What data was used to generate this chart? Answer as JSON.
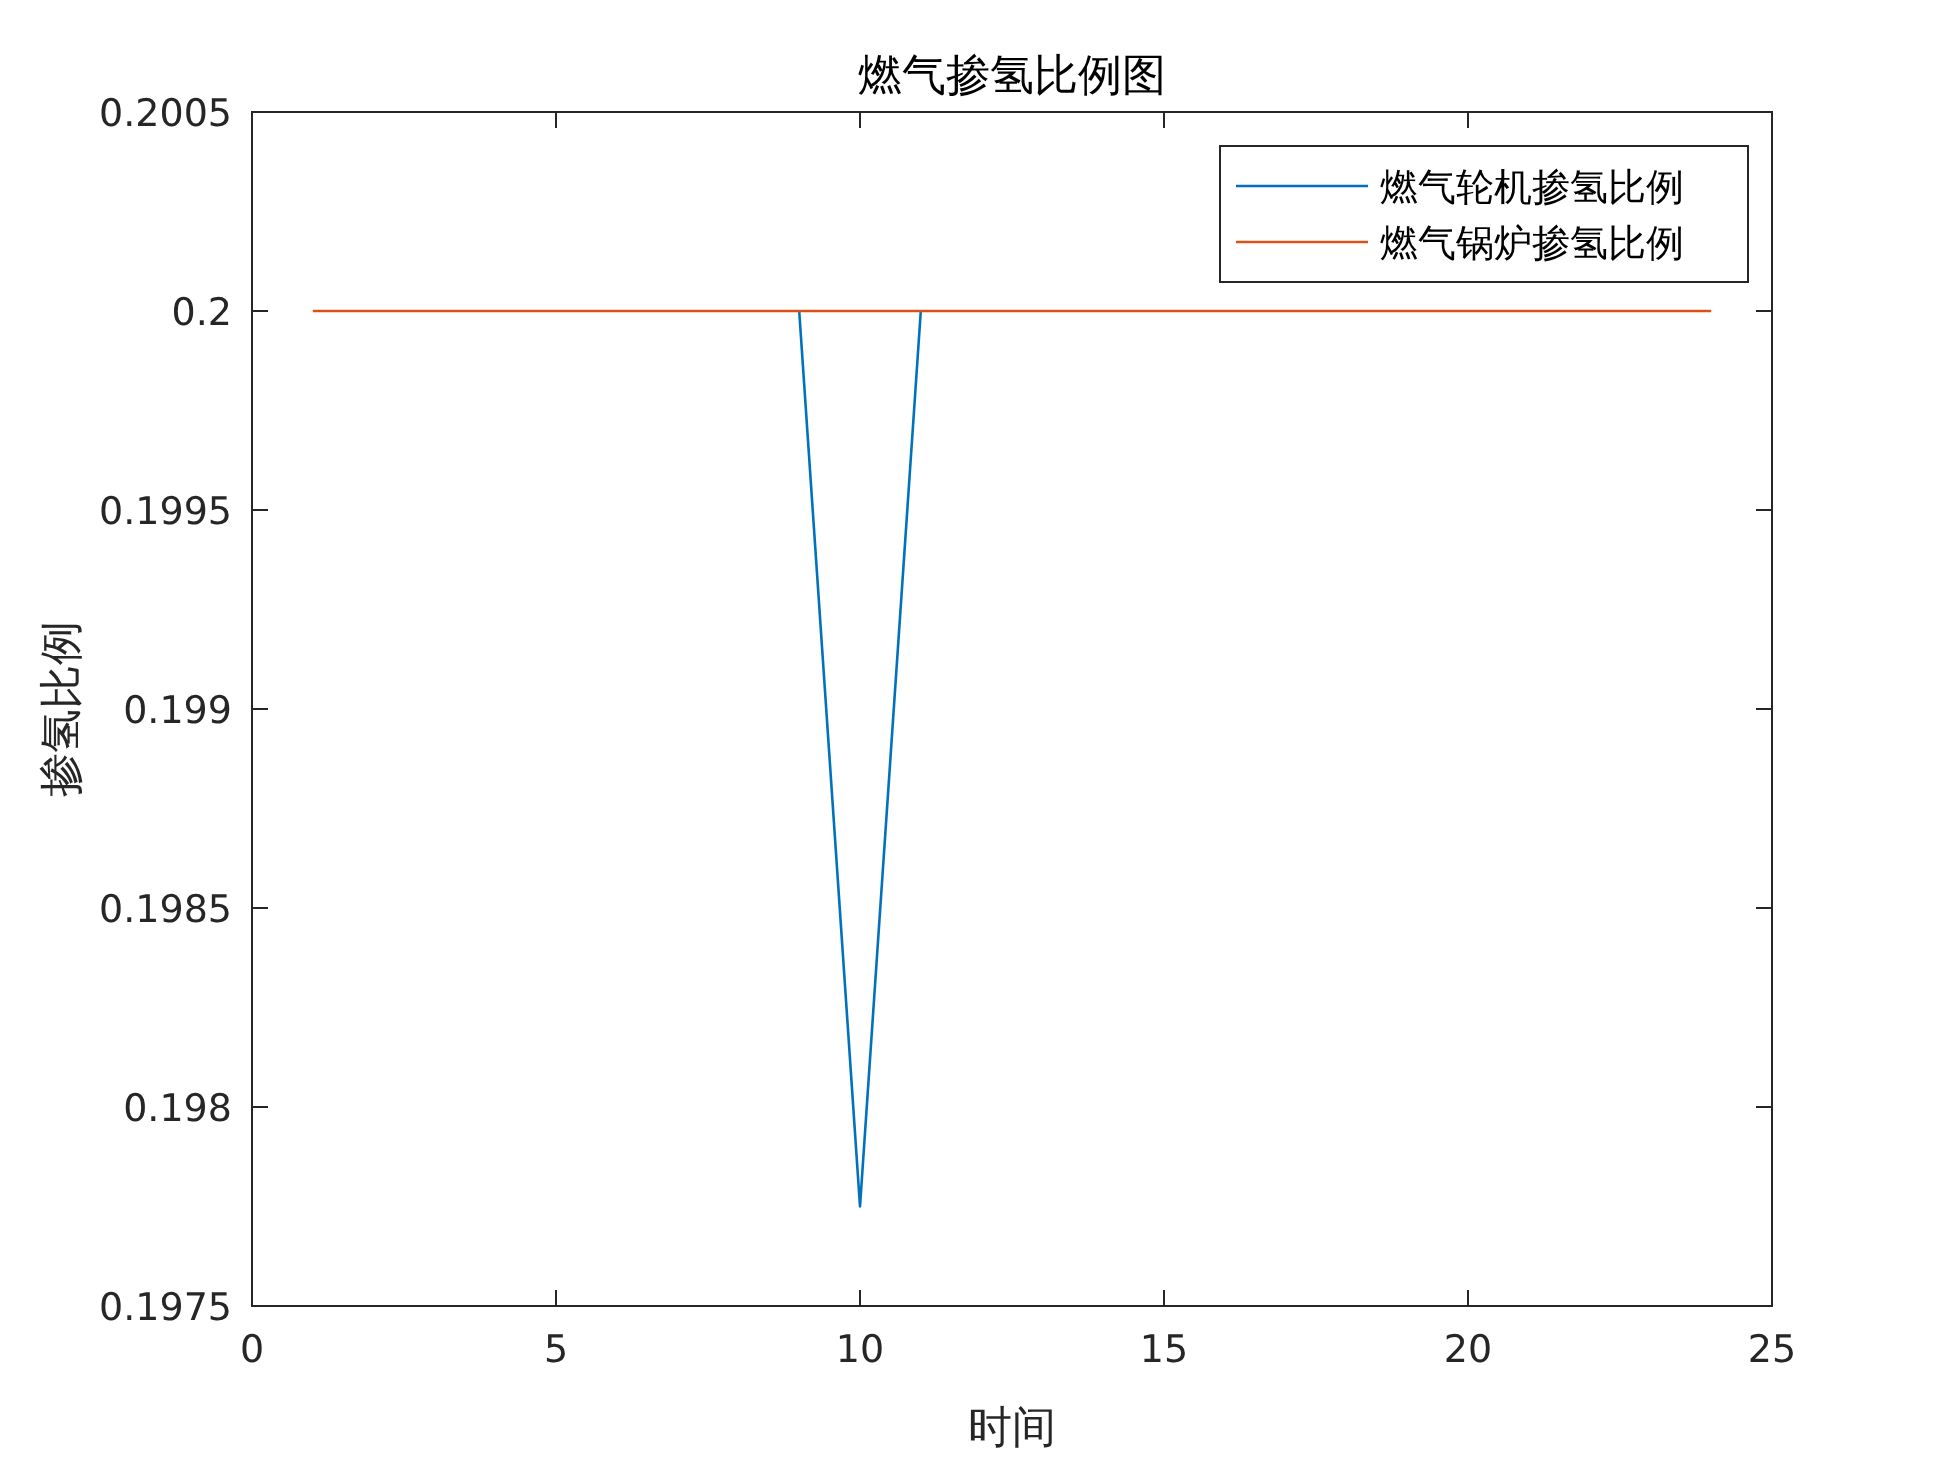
{
  "chart_data": {
    "type": "line",
    "title": "燃气掺氢比例图",
    "xlabel": "时间",
    "ylabel": "掺氢比例",
    "x": [
      1,
      2,
      3,
      4,
      5,
      6,
      7,
      8,
      9,
      10,
      11,
      12,
      13,
      14,
      15,
      16,
      17,
      18,
      19,
      20,
      21,
      22,
      23,
      24
    ],
    "series": [
      {
        "name": "燃气轮机掺氢比例",
        "color": "#0072bd",
        "values": [
          null,
          null,
          null,
          null,
          null,
          null,
          null,
          null,
          0.2,
          0.19775,
          0.2,
          null,
          null,
          null,
          null,
          null,
          null,
          null,
          null,
          null,
          null,
          null,
          null,
          null
        ]
      },
      {
        "name": "燃气锅炉掺氢比例",
        "color": "#d95319",
        "values": [
          0.2,
          0.2,
          0.2,
          0.2,
          0.2,
          0.2,
          0.2,
          0.2,
          0.2,
          0.2,
          0.2,
          0.2,
          0.2,
          0.2,
          0.2,
          0.2,
          0.2,
          0.2,
          0.2,
          0.2,
          0.2,
          0.2,
          0.2,
          0.2
        ]
      }
    ],
    "xlim": [
      0,
      25
    ],
    "xticks": [
      0,
      5,
      10,
      15,
      20,
      25
    ],
    "ylim": [
      0.1975,
      0.2005
    ],
    "yticks": [
      0.1975,
      0.198,
      0.1985,
      0.199,
      0.1995,
      0.2,
      0.2005
    ],
    "grid": false,
    "legend": "top right",
    "marker": "none",
    "line_style": "solid"
  }
}
